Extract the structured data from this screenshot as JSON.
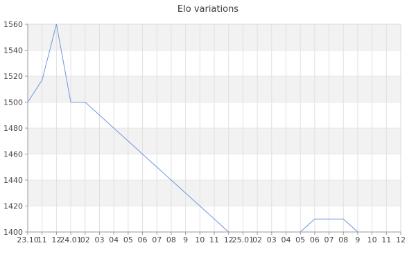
{
  "page": {
    "title": "Elo variations"
  },
  "chart_data": {
    "type": "line",
    "title": "Elo variations",
    "xlabel": "",
    "ylabel": "",
    "legend": "none",
    "grid": "alternating horizontal bands with vertical gridlines",
    "ylim": [
      1400,
      1560
    ],
    "y_tick_values": [
      1400,
      1420,
      1440,
      1460,
      1480,
      1500,
      1520,
      1540,
      1560
    ],
    "x_tick_labels": [
      "23.10",
      "11",
      "12",
      "24.01",
      "02",
      "03",
      "04",
      "05",
      "06",
      "07",
      "08",
      "9",
      "10",
      "11",
      "12",
      "25.01",
      "02",
      "03",
      "04",
      "05",
      "06",
      "07",
      "08",
      "9",
      "10",
      "11",
      "12"
    ],
    "series": [
      {
        "name": "Elo",
        "color": "#6e95dc",
        "values": [
          1500,
          1517,
          1560,
          1500,
          1500,
          1490,
          1480,
          1470,
          1460,
          1450,
          1440,
          1430,
          1420,
          1410,
          1400,
          null,
          null,
          null,
          null,
          1400,
          1410,
          1410,
          1410,
          1400,
          null,
          null,
          null
        ]
      }
    ]
  },
  "colors": {
    "band_gray": "#f2f2f2",
    "band_white": "#ffffff",
    "v_gridline": "#e0e0e0",
    "h_gridline": "#e7e7e7",
    "axis": "#999999",
    "border": "#d9d9d9",
    "tick_text": "#444444",
    "title_text": "#3a3a3a",
    "line": "#6e95dc"
  }
}
